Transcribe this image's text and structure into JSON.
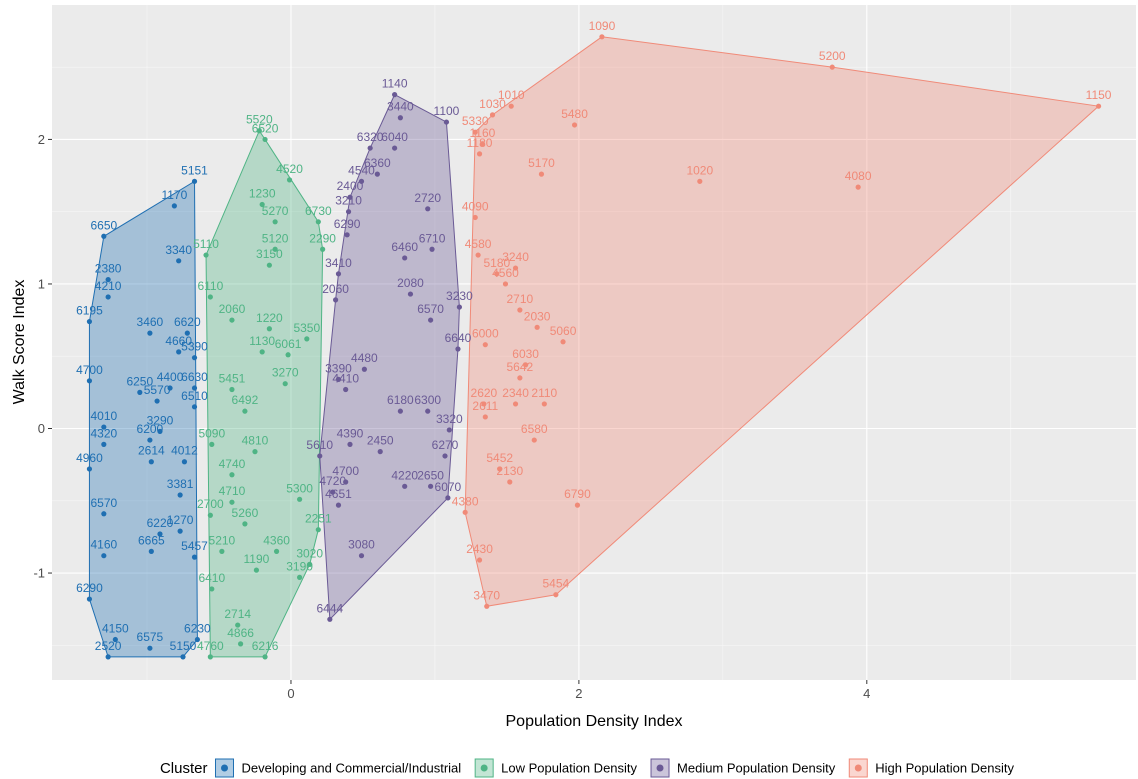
{
  "chart_data": {
    "type": "scatter",
    "x_label": "Population Density Index",
    "y_label": "Walk Score Index",
    "legend_title": "Cluster",
    "legend_position": "bottom",
    "grid": true,
    "hulls": true,
    "xlim": [
      -1.66,
      5.87
    ],
    "ylim": [
      -1.74,
      2.93
    ],
    "xticks": [
      0,
      2,
      4
    ],
    "yticks": [
      -1,
      0,
      1,
      2
    ],
    "series": [
      {
        "name": "Developing and Commercial/Industrial",
        "color": "#1f6fb2",
        "labels": [
          "6650",
          "5151",
          "1170",
          "3340",
          "2380",
          "4210",
          "6195",
          "3460",
          "6620",
          "4660",
          "5390",
          "4700",
          "6250",
          "4400",
          "5570",
          "6630",
          "6510",
          "4010",
          "4320",
          "3290",
          "6200",
          "2614",
          "4012",
          "4960",
          "3381",
          "6570",
          "6220",
          "1270",
          "6665",
          "4160",
          "5457",
          "6290",
          "4150",
          "6575",
          "2520",
          "5150",
          "6230"
        ],
        "x": [
          -1.3,
          -0.67,
          -0.81,
          -0.78,
          -1.27,
          -1.27,
          -1.4,
          -0.98,
          -0.72,
          -0.78,
          -0.67,
          -1.4,
          -1.05,
          -0.84,
          -0.93,
          -0.67,
          -0.67,
          -1.3,
          -1.3,
          -0.91,
          -0.98,
          -0.97,
          -0.74,
          -1.4,
          -0.77,
          -1.3,
          -0.91,
          -0.77,
          -0.97,
          -1.3,
          -0.67,
          -1.4,
          -1.22,
          -0.98,
          -1.27,
          -0.75,
          -0.65
        ],
        "y": [
          1.33,
          1.71,
          1.54,
          1.16,
          1.03,
          0.91,
          0.74,
          0.66,
          0.66,
          0.53,
          0.49,
          0.33,
          0.25,
          0.28,
          0.19,
          0.28,
          0.15,
          0.01,
          -0.11,
          -0.02,
          -0.08,
          -0.23,
          -0.23,
          -0.28,
          -0.46,
          -0.59,
          -0.73,
          -0.71,
          -0.85,
          -0.88,
          -0.89,
          -1.18,
          -1.46,
          -1.52,
          -1.58,
          -1.58,
          -1.46
        ]
      },
      {
        "name": "Low Population Density",
        "color": "#4fb485",
        "labels": [
          "5520",
          "6520",
          "4520",
          "1230",
          "5110",
          "5270",
          "6730",
          "2290",
          "5120",
          "3150",
          "6110",
          "2060",
          "1220",
          "1130",
          "6061",
          "5350",
          "5451",
          "3270",
          "6492",
          "5090",
          "4810",
          "4740",
          "4710",
          "2700",
          "5260",
          "5300",
          "2251",
          "5210",
          "4360",
          "1190",
          "3020",
          "3190",
          "6410",
          "2714",
          "4866",
          "4760",
          "6216"
        ],
        "x": [
          -0.22,
          -0.18,
          -0.01,
          -0.2,
          -0.59,
          -0.11,
          0.19,
          0.22,
          -0.11,
          -0.15,
          -0.56,
          -0.41,
          -0.15,
          -0.2,
          -0.02,
          0.11,
          -0.41,
          -0.04,
          -0.32,
          -0.55,
          -0.25,
          -0.41,
          -0.41,
          -0.56,
          -0.32,
          0.06,
          0.19,
          -0.48,
          -0.1,
          -0.24,
          0.13,
          0.06,
          -0.55,
          -0.37,
          -0.35,
          -0.56,
          -0.18
        ],
        "y": [
          2.06,
          2.0,
          1.72,
          1.55,
          1.2,
          1.43,
          1.43,
          1.24,
          1.24,
          1.13,
          0.91,
          0.75,
          0.69,
          0.53,
          0.51,
          0.62,
          0.27,
          0.31,
          0.12,
          -0.11,
          -0.16,
          -0.32,
          -0.51,
          -0.6,
          -0.66,
          -0.49,
          -0.7,
          -0.85,
          -0.85,
          -0.98,
          -0.94,
          -1.03,
          -1.11,
          -1.36,
          -1.49,
          -1.58,
          -1.58
        ]
      },
      {
        "name": "Medium Population Density",
        "color": "#6a5a95",
        "labels": [
          "1140",
          "3440",
          "1100",
          "6320",
          "6040",
          "6360",
          "4540",
          "2400",
          "2720",
          "3210",
          "6290",
          "6710",
          "6460",
          "3410",
          "2080",
          "2060",
          "3230",
          "6570",
          "6640",
          "4480",
          "3390",
          "4410",
          "6180",
          "6300",
          "3320",
          "4390",
          "2450",
          "6270",
          "5610",
          "4700",
          "4220",
          "2650",
          "6070",
          "4720",
          "4651",
          "3080",
          "6444"
        ],
        "x": [
          0.72,
          0.76,
          1.08,
          0.55,
          0.72,
          0.6,
          0.49,
          0.41,
          0.95,
          0.4,
          0.39,
          0.98,
          0.79,
          0.33,
          0.83,
          0.31,
          1.17,
          0.97,
          1.16,
          0.51,
          0.33,
          0.38,
          0.76,
          0.95,
          1.1,
          0.41,
          0.62,
          1.07,
          0.2,
          0.38,
          0.79,
          0.97,
          1.09,
          0.29,
          0.33,
          0.49,
          0.27
        ],
        "y": [
          2.31,
          2.15,
          2.12,
          1.94,
          1.94,
          1.76,
          1.71,
          1.6,
          1.52,
          1.5,
          1.34,
          1.24,
          1.18,
          1.07,
          0.93,
          0.89,
          0.84,
          0.75,
          0.55,
          0.41,
          0.34,
          0.27,
          0.12,
          0.12,
          -0.01,
          -0.11,
          -0.16,
          -0.19,
          -0.19,
          -0.37,
          -0.4,
          -0.4,
          -0.48,
          -0.44,
          -0.53,
          -0.88,
          -1.32
        ]
      },
      {
        "name": "High Population Density",
        "color": "#f08a78",
        "labels": [
          "1090",
          "5200",
          "1150",
          "1010",
          "1030",
          "5480",
          "5330",
          "1160",
          "1180",
          "5170",
          "1020",
          "4080",
          "4090",
          "4580",
          "3240",
          "5180",
          "4560",
          "2710",
          "2030",
          "5060",
          "6000",
          "6030",
          "5642",
          "2110",
          "2340",
          "2620",
          "2611",
          "6580",
          "5452",
          "2130",
          "6790",
          "4380",
          "2430",
          "5454",
          "3470"
        ],
        "x": [
          2.16,
          3.76,
          5.61,
          1.53,
          1.4,
          1.97,
          1.28,
          1.33,
          1.31,
          1.74,
          2.84,
          3.94,
          1.28,
          1.3,
          1.56,
          1.43,
          1.49,
          1.59,
          1.71,
          1.89,
          1.35,
          1.63,
          1.59,
          1.76,
          1.56,
          1.34,
          1.35,
          1.69,
          1.45,
          1.52,
          1.99,
          1.21,
          1.31,
          1.84,
          1.36
        ],
        "y": [
          2.71,
          2.5,
          2.23,
          2.23,
          2.17,
          2.1,
          2.05,
          1.97,
          1.9,
          1.76,
          1.71,
          1.67,
          1.46,
          1.2,
          1.11,
          1.07,
          1.0,
          0.82,
          0.7,
          0.6,
          0.58,
          0.44,
          0.35,
          0.17,
          0.17,
          0.17,
          0.08,
          -0.08,
          -0.28,
          -0.37,
          -0.53,
          -0.58,
          -0.91,
          -1.15,
          -1.23
        ]
      }
    ]
  }
}
